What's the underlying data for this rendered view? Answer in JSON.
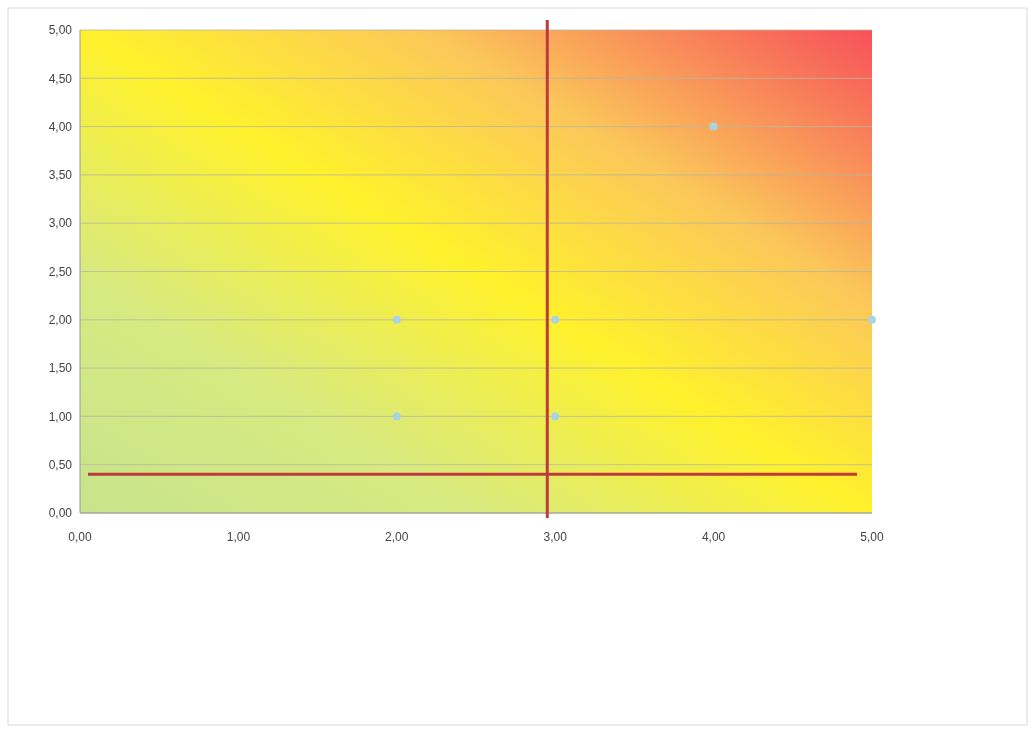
{
  "chart_data": {
    "type": "scatter",
    "series": [
      {
        "color": "#a9d4e6",
        "x": [
          2,
          2,
          3,
          3,
          4,
          5
        ],
        "values": [
          2,
          1,
          2,
          1,
          4,
          2
        ]
      }
    ],
    "xlim": [
      0,
      5
    ],
    "ylim": [
      0,
      5
    ],
    "xticks": [
      {
        "value": 0,
        "label": "0,00"
      },
      {
        "value": 1,
        "label": "1,00"
      },
      {
        "value": 2,
        "label": "2,00"
      },
      {
        "value": 3,
        "label": "3,00"
      },
      {
        "value": 4,
        "label": "4,00"
      },
      {
        "value": 5,
        "label": "5,00"
      }
    ],
    "yticks": [
      {
        "value": 0,
        "label": "0,00"
      },
      {
        "value": 0.5,
        "label": "0,50"
      },
      {
        "value": 1,
        "label": "1,00"
      },
      {
        "value": 1.5,
        "label": "1,50"
      },
      {
        "value": 2,
        "label": "2,00"
      },
      {
        "value": 2.5,
        "label": "2,50"
      },
      {
        "value": 3,
        "label": "3,00"
      },
      {
        "value": 3.5,
        "label": "3,50"
      },
      {
        "value": 4,
        "label": "4,00"
      },
      {
        "value": 4.5,
        "label": "4,50"
      },
      {
        "value": 5,
        "label": "5,00"
      }
    ],
    "grid": "y",
    "marker": "circle",
    "ref_lines": [
      {
        "axis": "x",
        "value": 2.95,
        "color": "#c0393d"
      },
      {
        "axis": "y",
        "value": 0.4,
        "color": "#c0393d"
      }
    ]
  }
}
